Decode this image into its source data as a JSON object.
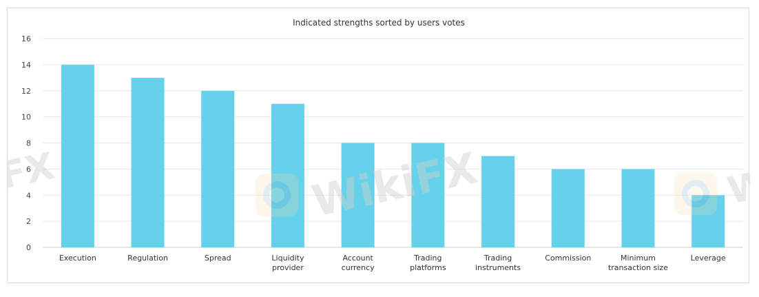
{
  "chart_data": {
    "type": "bar",
    "title": "Indicated strengths sorted by users votes",
    "categories": [
      [
        "Execution"
      ],
      [
        "Regulation"
      ],
      [
        "Spread"
      ],
      [
        "Liquidity",
        "provider"
      ],
      [
        "Account",
        "currency"
      ],
      [
        "Trading",
        "platforms"
      ],
      [
        "Trading",
        "instruments"
      ],
      [
        "Commission"
      ],
      [
        "Minimum",
        "transaction size"
      ],
      [
        "Leverage"
      ]
    ],
    "values": [
      14,
      13,
      12,
      11,
      8,
      8,
      7,
      6,
      6,
      4
    ],
    "ylim": [
      0,
      16
    ],
    "yticks": [
      0,
      2,
      4,
      6,
      8,
      10,
      12,
      14,
      16
    ],
    "grid": true,
    "bar_color": "#66d1ea",
    "grid_color": "#e6e6e6",
    "text_color": "#333333",
    "tick_color": "#444444"
  },
  "watermark": {
    "text_left": "FX",
    "text_center": "WikiFX",
    "text_right": "W",
    "badge_icon": "wikifx-logo-icon"
  }
}
